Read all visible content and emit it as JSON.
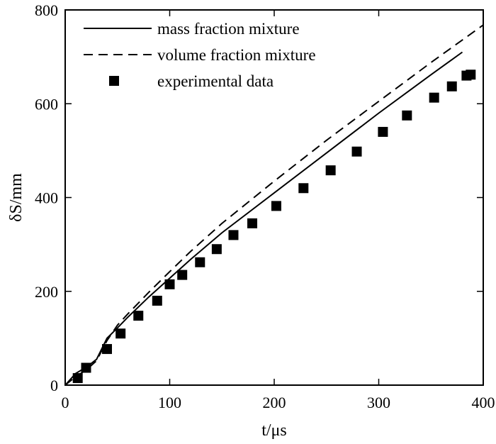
{
  "chart_data": {
    "type": "line",
    "xlabel": "t/μs",
    "ylabel": "δS/mm",
    "xlim": [
      0,
      400
    ],
    "ylim": [
      0,
      800
    ],
    "x_ticks": [
      0,
      100,
      200,
      300,
      400
    ],
    "y_ticks": [
      0,
      200,
      400,
      600,
      800
    ],
    "x_tick_labels": [
      "0",
      "100",
      "200",
      "300",
      "400"
    ],
    "y_tick_labels": [
      "0",
      "200",
      "400",
      "600",
      "800"
    ],
    "grid": false,
    "legend_position": "top-left",
    "series": [
      {
        "name": "mass fraction mixture",
        "style": "solid",
        "points": [
          [
            0,
            0
          ],
          [
            10,
            25
          ],
          [
            20,
            38
          ],
          [
            30,
            55
          ],
          [
            40,
            100
          ],
          [
            50,
            122
          ],
          [
            60,
            145
          ],
          [
            80,
            188
          ],
          [
            100,
            228
          ],
          [
            120,
            268
          ],
          [
            150,
            325
          ],
          [
            200,
            410
          ],
          [
            250,
            495
          ],
          [
            300,
            580
          ],
          [
            350,
            662
          ],
          [
            380,
            710
          ]
        ]
      },
      {
        "name": "volume fraction mixture",
        "style": "dashed",
        "points": [
          [
            0,
            0
          ],
          [
            10,
            18
          ],
          [
            20,
            32
          ],
          [
            30,
            52
          ],
          [
            40,
            95
          ],
          [
            50,
            128
          ],
          [
            60,
            152
          ],
          [
            80,
            198
          ],
          [
            100,
            242
          ],
          [
            120,
            285
          ],
          [
            150,
            345
          ],
          [
            200,
            435
          ],
          [
            250,
            522
          ],
          [
            300,
            605
          ],
          [
            350,
            688
          ],
          [
            400,
            768
          ]
        ]
      },
      {
        "name": "experimental data",
        "style": "markers",
        "points": [
          [
            12,
            15
          ],
          [
            20,
            37
          ],
          [
            40,
            77
          ],
          [
            53,
            110
          ],
          [
            70,
            148
          ],
          [
            88,
            180
          ],
          [
            100,
            215
          ],
          [
            112,
            235
          ],
          [
            129,
            262
          ],
          [
            145,
            290
          ],
          [
            161,
            320
          ],
          [
            179,
            345
          ],
          [
            202,
            382
          ],
          [
            228,
            420
          ],
          [
            254,
            458
          ],
          [
            279,
            498
          ],
          [
            304,
            540
          ],
          [
            327,
            575
          ],
          [
            353,
            613
          ],
          [
            370,
            637
          ],
          [
            384,
            660
          ],
          [
            388,
            662
          ]
        ]
      }
    ]
  }
}
